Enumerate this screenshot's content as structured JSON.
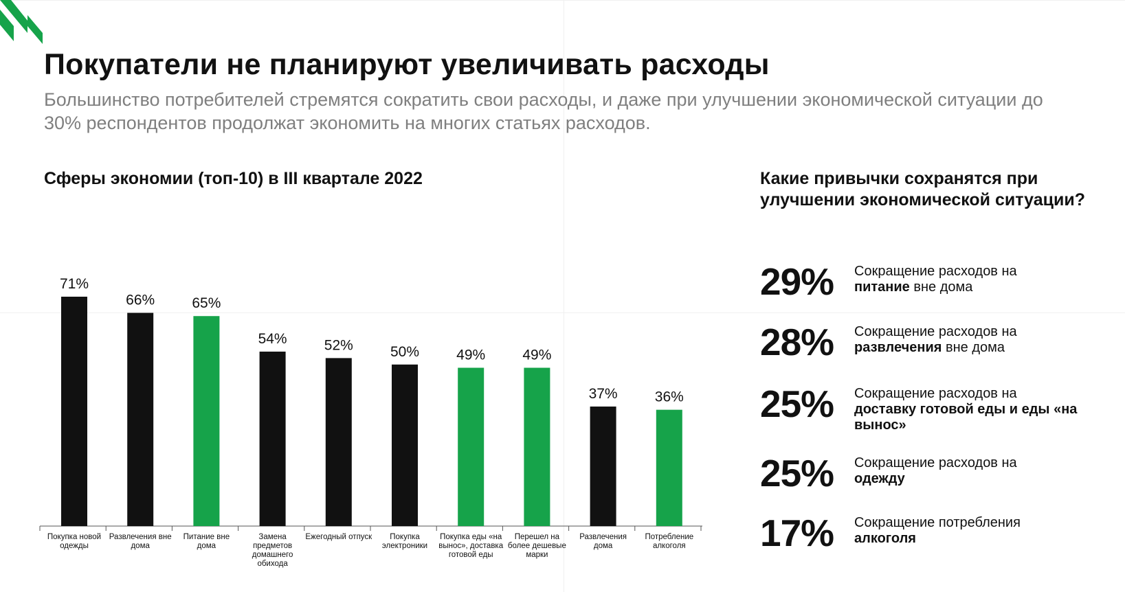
{
  "header": {
    "title": "Покупатели не планируют увеличивать расходы",
    "subtitle": "Большинство потребителей стремятся сократить свои расходы, и даже при улучшении экономической ситуации до 30% респондентов продолжат экономить на многих статьях расходов."
  },
  "colors": {
    "accent": "#16a34a",
    "bar_dark": "#111111",
    "subtitle_gray": "#7f7f7f"
  },
  "chart_data": {
    "type": "bar",
    "title": "Сферы экономии (топ-10) в III квартале 2022",
    "categories": [
      "Покупка новой одежды",
      "Развлечения вне дома",
      "Питание вне дома",
      "Замена предметов домашнего обихода",
      "Ежегодный отпуск",
      "Покупка электроники",
      "Покупка еды «на вынос», доставка готовой еды",
      "Перешел на более дешевые марки",
      "Развлечения дома",
      "Потребление алкоголя"
    ],
    "values": [
      71,
      66,
      65,
      54,
      52,
      50,
      49,
      49,
      37,
      36
    ],
    "value_labels": [
      "71%",
      "66%",
      "65%",
      "54%",
      "52%",
      "50%",
      "49%",
      "49%",
      "37%",
      "36%"
    ],
    "highlighted": [
      false,
      false,
      true,
      false,
      false,
      false,
      true,
      true,
      false,
      true
    ],
    "ylim": [
      0,
      71
    ],
    "xlabel": "",
    "ylabel": "",
    "grid": false
  },
  "habits": {
    "title": "Какие привычки сохранятся при улучшении экономической ситуации?",
    "items": [
      {
        "pct": "29%",
        "prefix": "Сокращение расходов на",
        "bold": "питание",
        "suffix": " вне дома"
      },
      {
        "pct": "28%",
        "prefix": "Сокращение расходов на",
        "bold": "развлечения",
        "suffix": " вне дома"
      },
      {
        "pct": "25%",
        "prefix": "Сокращение расходов на",
        "bold": "доставку готовой еды и еды «на вынос»",
        "suffix": ""
      },
      {
        "pct": "25%",
        "prefix": "Сокращение расходов на",
        "bold": "одежду",
        "suffix": ""
      },
      {
        "pct": "17%",
        "prefix": "Сокращение потребления",
        "bold": "алкоголя",
        "suffix": ""
      }
    ]
  }
}
